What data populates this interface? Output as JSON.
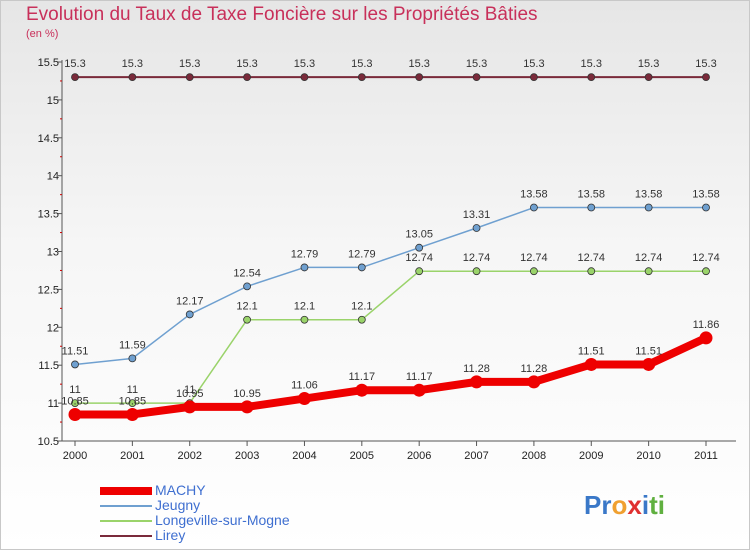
{
  "title": "Evolution du Taux de Taxe Foncière sur les Propriétés Bâties",
  "subtitle": "(en %)",
  "logo": {
    "text": "Proxiti",
    "letters": [
      {
        "ch": "P",
        "color": "#3a78c8"
      },
      {
        "ch": "r",
        "color": "#3a78c8"
      },
      {
        "ch": "o",
        "color": "#f0a030"
      },
      {
        "ch": "x",
        "color": "#e03030"
      },
      {
        "ch": "i",
        "color": "#3a78c8"
      },
      {
        "ch": "t",
        "color": "#60b040"
      },
      {
        "ch": "i",
        "color": "#60b040"
      }
    ]
  },
  "chart_data": {
    "type": "line",
    "title": "Evolution du Taux de Taxe Foncière sur les Propriétés Bâties",
    "ylabel": "(en %)",
    "xlabel": "",
    "ylim": [
      10.5,
      15.5
    ],
    "yticks": [
      "10.5",
      "11",
      "11.5",
      "12",
      "12.5",
      "13",
      "13.5",
      "14",
      "14.5",
      "15",
      "15.5"
    ],
    "categories": [
      "2000",
      "2001",
      "2002",
      "2003",
      "2004",
      "2005",
      "2006",
      "2007",
      "2008",
      "2009",
      "2010",
      "2011"
    ],
    "legend": "bottom-left",
    "series": [
      {
        "name": "Lirey",
        "color": "#7a2a3a",
        "width": 2,
        "values": [
          15.3,
          15.3,
          15.3,
          15.3,
          15.3,
          15.3,
          15.3,
          15.3,
          15.3,
          15.3,
          15.3,
          15.3
        ],
        "labels": [
          "15.3",
          "15.3",
          "15.3",
          "15.3",
          "15.3",
          "15.3",
          "15.3",
          "15.3",
          "15.3",
          "15.3",
          "15.3",
          "15.3"
        ]
      },
      {
        "name": "Jeugny",
        "color": "#6fa0d0",
        "width": 1.5,
        "values": [
          11.51,
          11.59,
          12.17,
          12.54,
          12.79,
          12.79,
          13.05,
          13.31,
          13.58,
          13.58,
          13.58,
          13.58
        ],
        "labels": [
          "11.51",
          "11.59",
          "12.17",
          "12.54",
          "12.79",
          "12.79",
          "13.05",
          "13.31",
          "13.58",
          "13.58",
          "13.58",
          "13.58"
        ]
      },
      {
        "name": "Longeville-sur-Mogne",
        "color": "#9ad36a",
        "width": 1.5,
        "values": [
          11,
          11,
          11,
          12.1,
          12.1,
          12.1,
          12.74,
          12.74,
          12.74,
          12.74,
          12.74,
          12.74
        ],
        "labels": [
          "11",
          "11",
          "11",
          "12.1",
          "12.1",
          "12.1",
          "12.74",
          "12.74",
          "12.74",
          "12.74",
          "12.74",
          "12.74"
        ]
      },
      {
        "name": "MACHY",
        "color": "#ee0000",
        "width": 8,
        "values": [
          10.85,
          10.85,
          10.95,
          10.95,
          11.06,
          11.17,
          11.17,
          11.28,
          11.28,
          11.51,
          11.51,
          11.86
        ],
        "labels": [
          "10.85",
          "10.85",
          "10.95",
          "10.95",
          "11.06",
          "11.17",
          "11.17",
          "11.28",
          "11.28",
          "11.51",
          "11.51",
          "11.86"
        ]
      }
    ],
    "legend_order": [
      "MACHY",
      "Jeugny",
      "Longeville-sur-Mogne",
      "Lirey"
    ]
  }
}
